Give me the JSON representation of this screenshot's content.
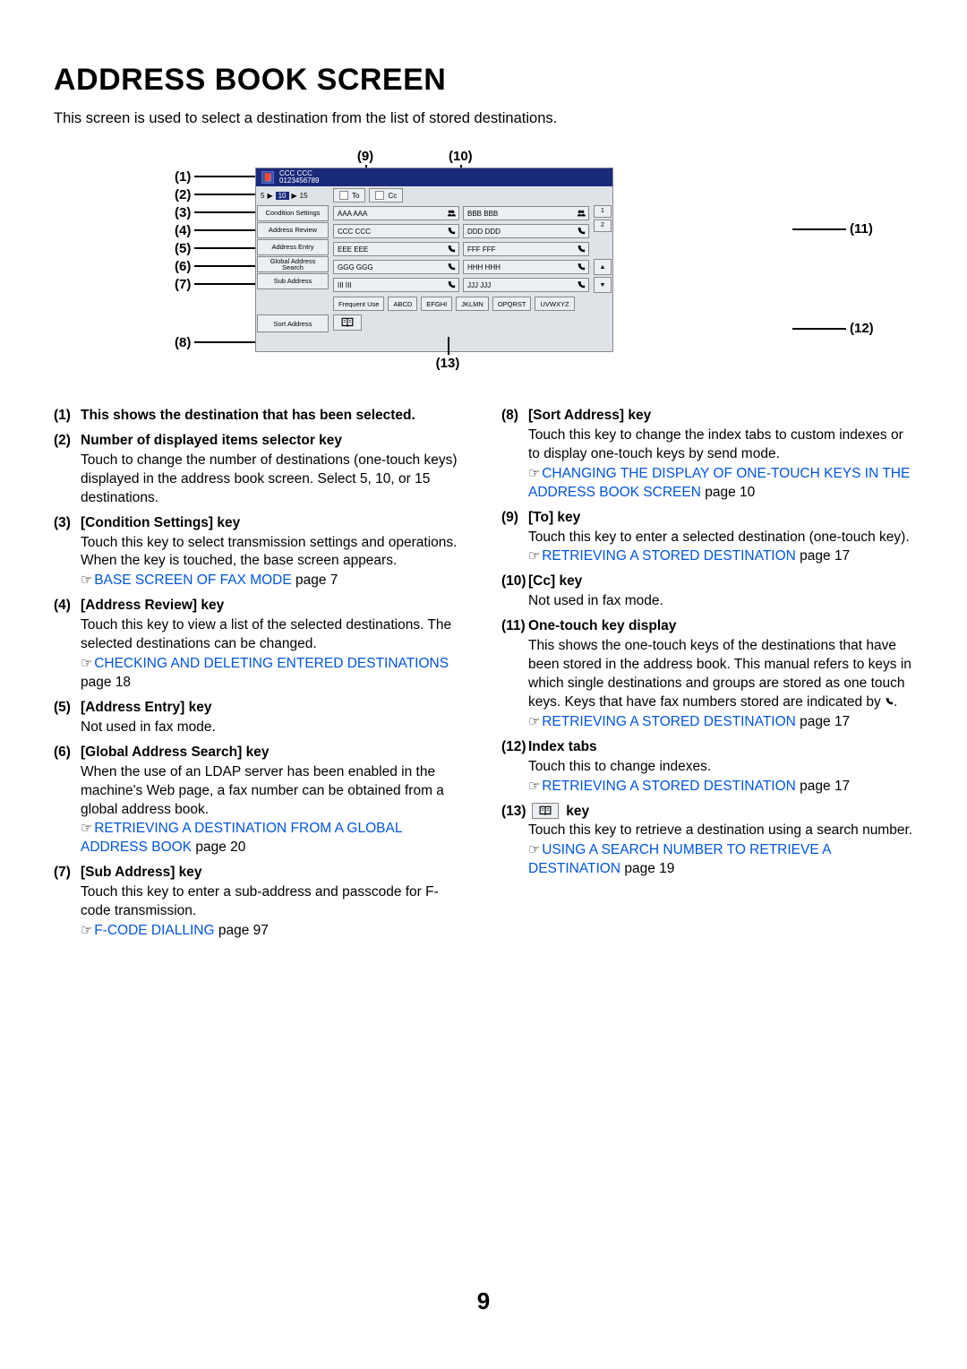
{
  "title": "ADDRESS BOOK SCREEN",
  "intro": "This screen is used to select a destination from the list of stored destinations.",
  "pageNumber": "9",
  "diagram": {
    "header": {
      "line1": "CCC CCC",
      "line2": "0123456789"
    },
    "selector": {
      "opt1": "5",
      "sel": "10",
      "opt2": "15"
    },
    "to": "To",
    "cc": "Cc",
    "sideButtons": {
      "condition": "Condition Settings",
      "review": "Address Review",
      "entry": "Address Entry",
      "global": "Global Address Search",
      "sub": "Sub Address",
      "sort": "Sort Address"
    },
    "keys": [
      [
        "AAA AAA",
        "BBB BBB"
      ],
      [
        "CCC CCC",
        "DDD DDD"
      ],
      [
        "EEE EEE",
        "FFF FFF"
      ],
      [
        "GGG GGG",
        "HHH HHH"
      ],
      [
        "III III",
        "JJJ JJJ"
      ]
    ],
    "idx": [
      "1",
      "2"
    ],
    "tabs": [
      "Frequent Use",
      "ABCD",
      "EFGHI",
      "JKLMN",
      "OPQRST",
      "UVWXYZ"
    ]
  },
  "callouts": {
    "left": [
      "(1)",
      "(2)",
      "(3)",
      "(4)",
      "(5)",
      "(6)",
      "(7)",
      "(8)"
    ],
    "top": [
      "(9)",
      "(10)"
    ],
    "right11": "(11)",
    "right12": "(12)",
    "bottom": "(13)"
  },
  "leftCol": [
    {
      "n": "(1)",
      "title": "This shows the destination that has been selected."
    },
    {
      "n": "(2)",
      "title": "Number of displayed items selector key",
      "text": "Touch to change the number of destinations (one-touch keys) displayed in the address book screen. Select 5, 10, or 15 destinations."
    },
    {
      "n": "(3)",
      "title": "[Condition Settings] key",
      "text": "Touch this key to select transmission settings and operations. When the key is touched, the base screen appears.",
      "link": "BASE SCREEN OF FAX MODE",
      "page": " page 7"
    },
    {
      "n": "(4)",
      "title": "[Address Review] key",
      "text": "Touch this key to view a list of the selected destinations. The selected destinations can be changed.",
      "link": "CHECKING AND DELETING ENTERED DESTINATIONS",
      "page": " page 18"
    },
    {
      "n": "(5)",
      "title": "[Address Entry] key",
      "text": "Not used in fax mode."
    },
    {
      "n": "(6)",
      "title": "[Global Address Search] key",
      "text": "When the use of an LDAP server has been enabled in the machine's Web page, a fax number can be obtained from a global address book.",
      "link": "RETRIEVING A DESTINATION FROM A GLOBAL ADDRESS BOOK",
      "page": " page 20"
    },
    {
      "n": "(7)",
      "title": "[Sub Address] key",
      "text": "Touch this key to enter a sub-address and passcode for F-code transmission.",
      "link": "F-CODE DIALLING",
      "page": " page 97"
    }
  ],
  "rightCol": [
    {
      "n": "(8)",
      "title": "[Sort Address] key",
      "text": "Touch this key to change the index tabs to custom indexes or to display one-touch keys by send mode.",
      "link": "CHANGING THE DISPLAY OF ONE-TOUCH KEYS IN THE ADDRESS BOOK SCREEN",
      "page": " page 10"
    },
    {
      "n": "(9)",
      "title": "[To] key",
      "text": "Touch this key to enter a selected destination (one-touch key).",
      "link": "RETRIEVING A STORED DESTINATION",
      "page": " page 17"
    },
    {
      "n": "(10)",
      "title": "[Cc] key",
      "text": "Not used in fax mode."
    },
    {
      "n": "(11)",
      "title": "One-touch key display",
      "text": "This shows the one-touch keys of the destinations that have been stored in the address book. This manual refers to keys in which single destinations and groups are stored as one touch keys. Keys that have fax numbers stored are indicated by ",
      "text2": ".",
      "link": "RETRIEVING A STORED DESTINATION",
      "page": " page 17",
      "hasPhone": true
    },
    {
      "n": "(12)",
      "title": "Index tabs",
      "text": "Touch this to change indexes.",
      "link": "RETRIEVING A STORED DESTINATION",
      "page": " page 17"
    },
    {
      "n": "(13)",
      "title": " key",
      "text": "Touch this key to retrieve a destination using a search number.",
      "link": "USING A SEARCH NUMBER TO RETRIEVE A DESTINATION",
      "page": " page 19",
      "hasKey13": true
    }
  ]
}
